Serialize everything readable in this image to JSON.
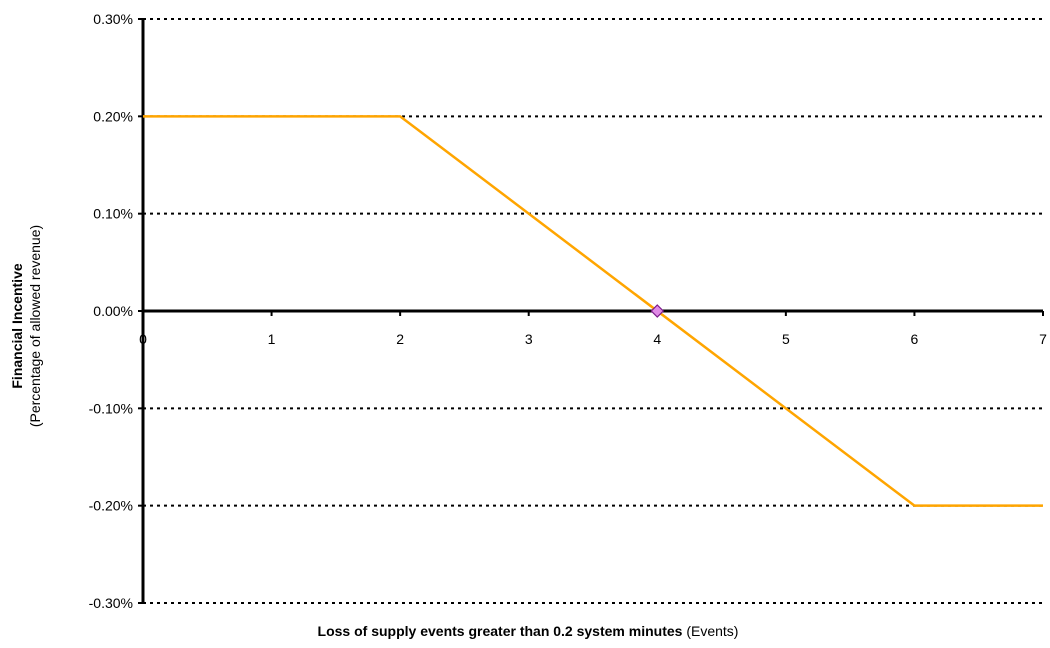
{
  "chart_data": {
    "type": "line",
    "title": "",
    "xlabel_bold": "Loss of supply events greater than 0.2 system minutes",
    "xlabel_unit": " (Events)",
    "ylabel_bold": "Financial Incentive",
    "ylabel_sub": "(Percentage of allowed  revenue)",
    "xlim": [
      0,
      7
    ],
    "ylim": [
      -0.3,
      0.3
    ],
    "x_ticks": [
      0,
      1,
      2,
      3,
      4,
      5,
      6,
      7
    ],
    "x_tick_labels": [
      "0",
      "1",
      "2",
      "3",
      "4",
      "5",
      "6",
      "7"
    ],
    "y_ticks": [
      0.3,
      0.2,
      0.1,
      0.0,
      -0.1,
      -0.2,
      -0.3
    ],
    "y_tick_labels": [
      "0.30%",
      "0.20%",
      "0.10%",
      "0.00%",
      "-0.10%",
      "-0.20%",
      "-0.30%"
    ],
    "grid": "horizontal dotted",
    "legend": "none",
    "series": [
      {
        "x": [
          0,
          2,
          6,
          7
        ],
        "values": [
          0.2,
          0.2,
          -0.2,
          -0.2
        ],
        "color": "#FFA500"
      }
    ],
    "marker_points": [
      {
        "x": 4,
        "y": 0.0,
        "color": "#E08AE6"
      }
    ]
  }
}
